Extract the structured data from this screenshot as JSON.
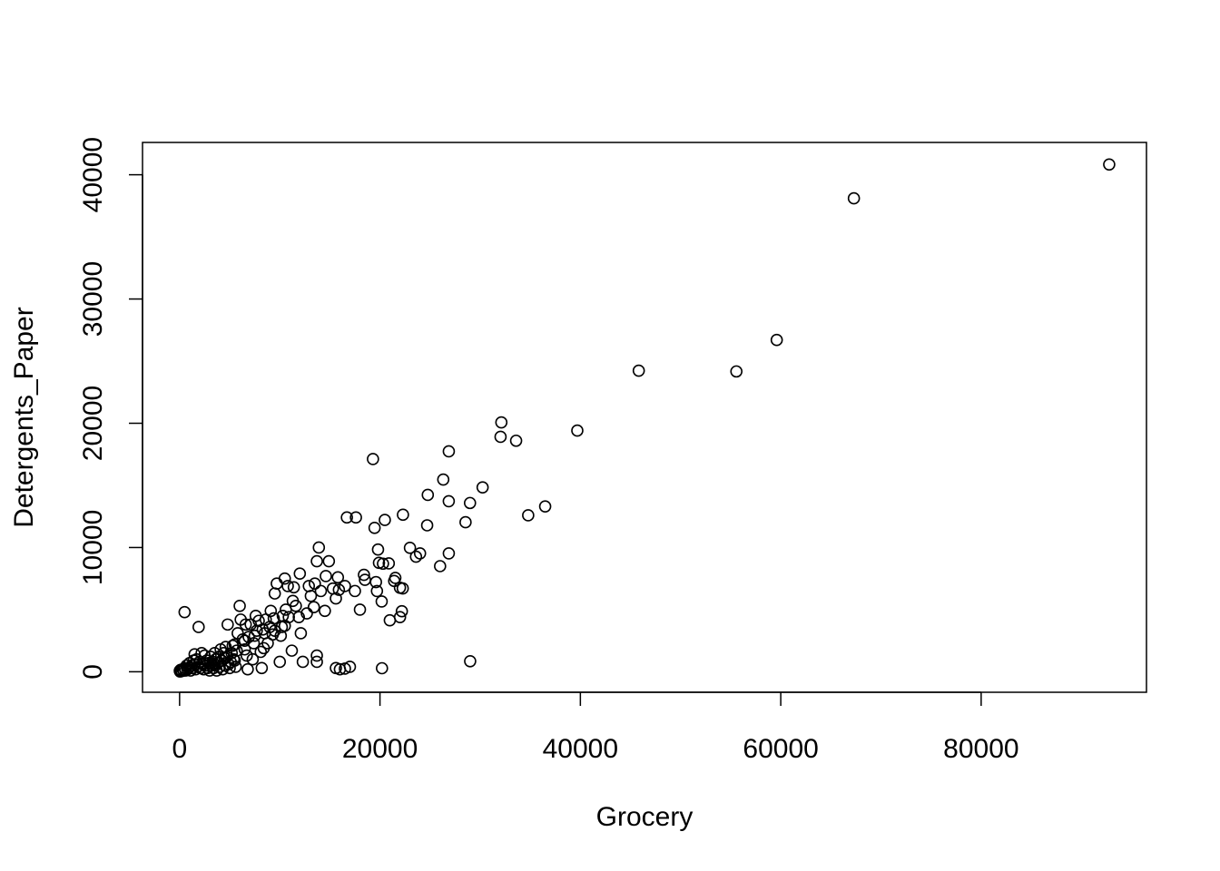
{
  "chart_data": {
    "type": "scatter",
    "xlabel": "Grocery",
    "ylabel": "Detergents_Paper",
    "xlim": [
      -3700,
      96500
    ],
    "ylim": [
      -1650,
      42600
    ],
    "xticks": [
      0,
      20000,
      40000,
      60000,
      80000
    ],
    "yticks": [
      0,
      10000,
      20000,
      30000,
      40000
    ],
    "xtick_labels": [
      "0",
      "20000",
      "40000",
      "60000",
      "80000"
    ],
    "ytick_labels": [
      "0",
      "10000",
      "20000",
      "30000",
      "40000"
    ],
    "marker": "open-circle",
    "color": "#000000",
    "grid": false,
    "points": [
      [
        92780,
        40827
      ],
      [
        67298,
        38102
      ],
      [
        59598,
        26701
      ],
      [
        55571,
        24171
      ],
      [
        45828,
        24231
      ],
      [
        39694,
        19410
      ],
      [
        36486,
        13308
      ],
      [
        34792,
        12591
      ],
      [
        33586,
        18594
      ],
      [
        32114,
        20070
      ],
      [
        32034,
        18906
      ],
      [
        30243,
        14841
      ],
      [
        29000,
        850
      ],
      [
        28986,
        13583
      ],
      [
        28540,
        12034
      ],
      [
        26870,
        17740
      ],
      [
        26866,
        13726
      ],
      [
        26870,
        9529
      ],
      [
        26316,
        15469
      ],
      [
        26000,
        8500
      ],
      [
        24773,
        14235
      ],
      [
        24708,
        11786
      ],
      [
        23998,
        9529
      ],
      [
        23596,
        9265
      ],
      [
        22991,
        9973
      ],
      [
        22294,
        12638
      ],
      [
        22272,
        6707
      ],
      [
        22182,
        4870
      ],
      [
        21994,
        6764
      ],
      [
        22000,
        4400
      ],
      [
        21531,
        7557
      ],
      [
        21417,
        7305
      ],
      [
        20981,
        4145
      ],
      [
        20878,
        8721
      ],
      [
        20484,
        12218
      ],
      [
        20300,
        8700
      ],
      [
        20170,
        5659
      ],
      [
        19805,
        9836
      ],
      [
        19900,
        8767
      ],
      [
        19460,
        11577
      ],
      [
        19300,
        17120
      ],
      [
        20200,
        285
      ],
      [
        19600,
        7220
      ],
      [
        19700,
        6500
      ],
      [
        18500,
        7400
      ],
      [
        18400,
        7800
      ],
      [
        18000,
        5000
      ],
      [
        17500,
        6500
      ],
      [
        17600,
        12420
      ],
      [
        16700,
        12420
      ],
      [
        16500,
        6900
      ],
      [
        15900,
        6600
      ],
      [
        15600,
        5900
      ],
      [
        15800,
        7600
      ],
      [
        15300,
        6700
      ],
      [
        14900,
        8900
      ],
      [
        14600,
        7700
      ],
      [
        14500,
        4900
      ],
      [
        14100,
        6500
      ],
      [
        13900,
        10000
      ],
      [
        13700,
        8900
      ],
      [
        13500,
        7100
      ],
      [
        13400,
        5200
      ],
      [
        13100,
        6100
      ],
      [
        12900,
        6900
      ],
      [
        12700,
        4700
      ],
      [
        13700,
        1300
      ],
      [
        13700,
        800
      ],
      [
        16000,
        200
      ],
      [
        15600,
        300
      ],
      [
        16500,
        250
      ],
      [
        17000,
        400
      ],
      [
        12300,
        800
      ],
      [
        12100,
        3100
      ],
      [
        12000,
        7900
      ],
      [
        11900,
        4400
      ],
      [
        11600,
        5300
      ],
      [
        11400,
        6800
      ],
      [
        11300,
        5700
      ],
      [
        11200,
        1700
      ],
      [
        10900,
        4400
      ],
      [
        10800,
        6900
      ],
      [
        10600,
        5000
      ],
      [
        10500,
        7500
      ],
      [
        10300,
        4500
      ],
      [
        10200,
        3600
      ],
      [
        10100,
        2900
      ],
      [
        10000,
        800
      ],
      [
        9700,
        7100
      ],
      [
        9500,
        6300
      ],
      [
        9400,
        4300
      ],
      [
        9300,
        3000
      ],
      [
        9100,
        4900
      ],
      [
        9000,
        3600
      ],
      [
        8800,
        2300
      ],
      [
        8600,
        4200
      ],
      [
        8400,
        1900
      ],
      [
        8300,
        3400
      ],
      [
        8200,
        300
      ],
      [
        8100,
        1600
      ],
      [
        7900,
        4100
      ],
      [
        7700,
        3300
      ],
      [
        7600,
        4500
      ],
      [
        7400,
        2300
      ],
      [
        7300,
        1000
      ],
      [
        7100,
        3800
      ],
      [
        6900,
        2800
      ],
      [
        6800,
        200
      ],
      [
        6700,
        1300
      ],
      [
        6600,
        3800
      ],
      [
        6500,
        1800
      ],
      [
        6300,
        2600
      ],
      [
        6100,
        4200
      ],
      [
        6000,
        5300
      ],
      [
        5800,
        3100
      ],
      [
        5700,
        1700
      ],
      [
        5600,
        400
      ],
      [
        5500,
        2200
      ],
      [
        5400,
        1000
      ],
      [
        5300,
        2100
      ],
      [
        5200,
        1500
      ],
      [
        5100,
        800
      ],
      [
        5000,
        300
      ],
      [
        4900,
        600
      ],
      [
        4800,
        3800
      ],
      [
        4700,
        1200
      ],
      [
        4600,
        2000
      ],
      [
        4500,
        500
      ],
      [
        4400,
        1500
      ],
      [
        4300,
        200
      ],
      [
        4200,
        900
      ],
      [
        4100,
        1800
      ],
      [
        4000,
        400
      ],
      [
        3900,
        1200
      ],
      [
        3800,
        700
      ],
      [
        3700,
        100
      ],
      [
        3600,
        1000
      ],
      [
        3500,
        1500
      ],
      [
        3400,
        300
      ],
      [
        3300,
        800
      ],
      [
        3200,
        500
      ],
      [
        3100,
        1200
      ],
      [
        3000,
        100
      ],
      [
        2900,
        700
      ],
      [
        2800,
        300
      ],
      [
        2700,
        900
      ],
      [
        2600,
        500
      ],
      [
        2500,
        1300
      ],
      [
        2400,
        200
      ],
      [
        2300,
        600
      ],
      [
        2200,
        1500
      ],
      [
        2100,
        300
      ],
      [
        2000,
        800
      ],
      [
        1900,
        3600
      ],
      [
        1800,
        400
      ],
      [
        1700,
        1000
      ],
      [
        1600,
        200
      ],
      [
        1500,
        600
      ],
      [
        1400,
        900
      ],
      [
        1300,
        300
      ],
      [
        1200,
        500
      ],
      [
        1100,
        100
      ],
      [
        1000,
        700
      ],
      [
        900,
        300
      ],
      [
        800,
        200
      ],
      [
        700,
        500
      ],
      [
        600,
        100
      ],
      [
        500,
        4800
      ],
      [
        500,
        300
      ],
      [
        400,
        100
      ],
      [
        300,
        200
      ],
      [
        200,
        50
      ],
      [
        100,
        150
      ],
      [
        50,
        20
      ],
      [
        20,
        80
      ],
      [
        1500,
        1400
      ],
      [
        2500,
        700
      ],
      [
        3500,
        600
      ],
      [
        4500,
        1100
      ],
      [
        5500,
        900
      ],
      [
        6500,
        2500
      ],
      [
        7500,
        2900
      ],
      [
        8500,
        3100
      ],
      [
        9500,
        3300
      ],
      [
        10500,
        3700
      ]
    ]
  }
}
